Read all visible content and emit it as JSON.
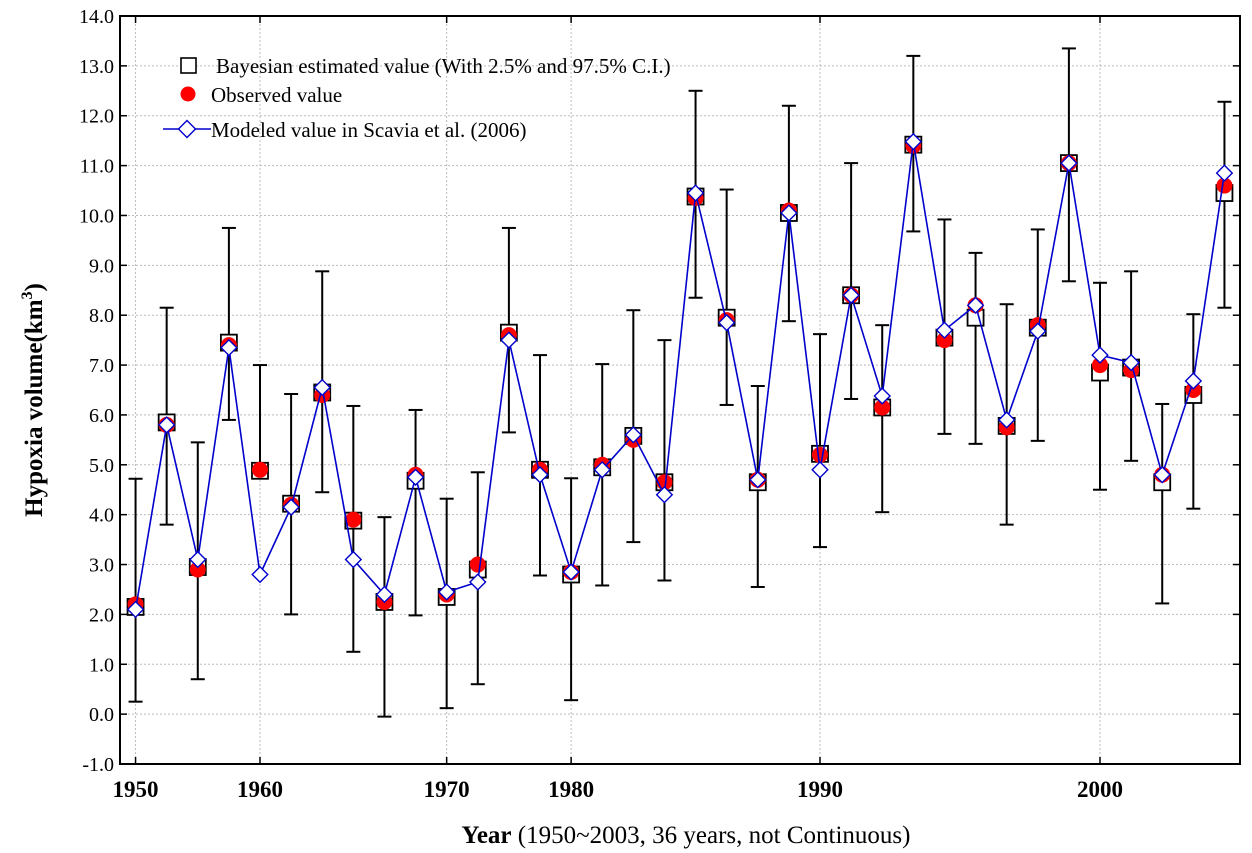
{
  "chart_data": {
    "type": "scatter",
    "title": "",
    "ylabel": "Hypoxia volume(km",
    "ylabel_sup": "3",
    "ylabel_close": ")",
    "xlabel_bold": "Year",
    "xlabel_rest": " (1950~2003, 36 years, not Continuous)",
    "ylim": [
      -1,
      14
    ],
    "ytick_step": 1,
    "ytick_labels": [
      "-1.0",
      "0.0",
      "1.0",
      "2.0",
      "3.0",
      "4.0",
      "5.0",
      "6.0",
      "7.0",
      "8.0",
      "9.0",
      "10.0",
      "11.0",
      "12.0",
      "13.0",
      "14.0"
    ],
    "xlim": [
      0.5,
      36.5
    ],
    "xtick_labels": [
      {
        "label": "1950",
        "position": 1
      },
      {
        "label": "1960",
        "position": 5
      },
      {
        "label": "1970",
        "position": 11
      },
      {
        "label": "1980",
        "position": 15
      },
      {
        "label": "1990",
        "position": 23
      },
      {
        "label": "2000",
        "position": 32
      }
    ],
    "grid": true,
    "legend_position": "top-left",
    "legend": [
      {
        "name": "Bayesian estimated value (With 2.5% and 97.5% C.I.)",
        "marker": "square"
      },
      {
        "name": "Observed value",
        "marker": "circle"
      },
      {
        "name": "Modeled value in Scavia et al. (2006)",
        "marker": "line-diamond"
      }
    ],
    "colors": {
      "observed": "#ff0000",
      "modeled": "#0000cc",
      "bayes": "#000000",
      "grid": "#bbbbbb"
    },
    "x": [
      1,
      2,
      3,
      4,
      5,
      6,
      7,
      8,
      9,
      10,
      11,
      12,
      13,
      14,
      15,
      16,
      17,
      18,
      19,
      20,
      21,
      22,
      23,
      24,
      25,
      26,
      27,
      28,
      29,
      30,
      31,
      32,
      33,
      34,
      35,
      36
    ],
    "series": [
      {
        "name": "Bayesian estimated value (With 2.5% and 97.5% C.I.)",
        "values": [
          2.15,
          5.85,
          2.95,
          7.45,
          4.88,
          4.22,
          6.45,
          3.88,
          2.25,
          4.68,
          2.35,
          2.9,
          7.65,
          4.9,
          2.8,
          4.95,
          5.58,
          4.65,
          10.38,
          7.95,
          4.65,
          10.05,
          5.22,
          8.4,
          6.15,
          11.42,
          7.55,
          7.95,
          5.78,
          7.75,
          11.05,
          6.85,
          6.95,
          4.65,
          6.4,
          10.45
        ],
        "lower": [
          0.25,
          3.8,
          0.7,
          5.9,
          null,
          2.0,
          4.45,
          1.25,
          -0.05,
          1.98,
          0.12,
          0.6,
          5.65,
          2.78,
          0.28,
          2.58,
          3.45,
          2.68,
          8.35,
          6.2,
          2.55,
          7.88,
          3.35,
          6.32,
          4.05,
          9.68,
          5.62,
          5.42,
          3.8,
          5.48,
          8.68,
          4.5,
          5.08,
          2.22,
          4.12,
          8.15
        ],
        "upper": [
          4.72,
          8.15,
          5.45,
          9.75,
          7.0,
          6.42,
          8.88,
          6.18,
          3.95,
          6.1,
          4.32,
          4.85,
          9.75,
          7.2,
          4.73,
          7.02,
          8.1,
          7.5,
          12.5,
          10.52,
          6.58,
          12.2,
          7.62,
          11.05,
          7.8,
          13.2,
          9.92,
          9.25,
          8.22,
          9.72,
          13.35,
          8.65,
          8.88,
          6.22,
          8.02,
          12.28
        ]
      },
      {
        "name": "Observed value",
        "values": [
          2.2,
          5.8,
          2.9,
          7.4,
          4.9,
          4.2,
          6.4,
          3.9,
          2.25,
          4.8,
          2.4,
          3.0,
          7.6,
          4.9,
          2.85,
          5.0,
          5.5,
          4.65,
          10.35,
          7.9,
          4.7,
          10.1,
          5.2,
          8.4,
          6.15,
          11.4,
          7.5,
          8.2,
          5.75,
          7.8,
          11.05,
          7.0,
          6.9,
          4.8,
          6.5,
          10.6
        ]
      },
      {
        "name": "Modeled value in Scavia et al. (2006)",
        "values": [
          2.1,
          5.8,
          3.1,
          7.35,
          2.8,
          4.15,
          6.55,
          3.1,
          2.4,
          4.75,
          2.45,
          2.65,
          7.5,
          4.8,
          2.85,
          4.9,
          5.6,
          4.4,
          10.45,
          7.85,
          4.7,
          10.05,
          4.9,
          8.4,
          6.38,
          11.48,
          7.7,
          8.2,
          5.9,
          7.68,
          11.05,
          7.2,
          7.05,
          4.8,
          6.68,
          10.85
        ]
      }
    ]
  }
}
